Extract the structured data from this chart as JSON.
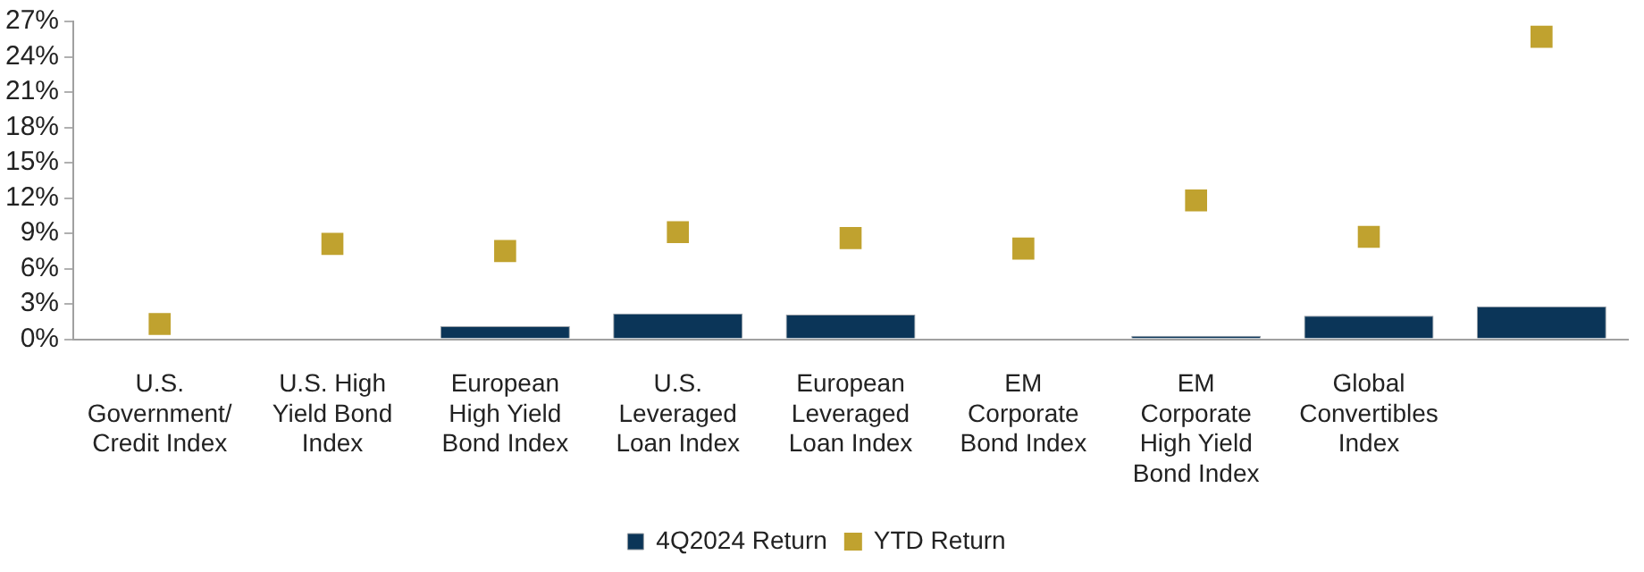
{
  "chart_data": {
    "type": "bar",
    "categories": [
      "U.S. Government/ Credit Index",
      "U.S. High Yield Bond Index",
      "European High Yield Bond Index",
      "U.S. Leveraged Loan Index",
      "European Leveraged Loan Index",
      "EM Corporate Bond Index",
      "EM Corporate High Yield Bond Index",
      "Global Convertibles Index",
      null
    ],
    "series": [
      {
        "name": "4Q2024 Return",
        "color": "#0b3558",
        "values": [
          0,
          0,
          1.1,
          2.2,
          2.1,
          0,
          0.3,
          2.0,
          2.8
        ]
      },
      {
        "name": "YTD Return",
        "type": "scatter",
        "color": "#c0a22f",
        "values": [
          1.3,
          8.1,
          7.5,
          9.1,
          8.6,
          7.7,
          11.8,
          8.7,
          25.7
        ]
      }
    ],
    "ylim": [
      0,
      27
    ],
    "yticks": [
      {
        "value": 0,
        "label": "0%"
      },
      {
        "value": 3,
        "label": "3%"
      },
      {
        "value": 6,
        "label": "6%"
      },
      {
        "value": 9,
        "label": "9%"
      },
      {
        "value": 12,
        "label": "12%"
      },
      {
        "value": 15,
        "label": "15%"
      },
      {
        "value": 18,
        "label": "18%"
      },
      {
        "value": 21,
        "label": "21%"
      },
      {
        "value": 24,
        "label": "24%"
      },
      {
        "value": 27,
        "label": "27%"
      }
    ],
    "grid": false,
    "legend": "bottom",
    "marker": "square"
  }
}
